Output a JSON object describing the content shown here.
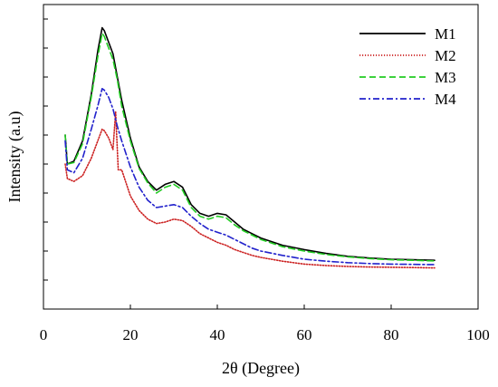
{
  "chart_data": {
    "type": "line",
    "title": "",
    "xlabel": "2θ (Degree)",
    "ylabel": "Intensity (a.u)",
    "xlim": [
      0,
      100
    ],
    "ylim": [
      0,
      10.5
    ],
    "x_ticks": [
      0,
      20,
      40,
      60,
      80,
      100
    ],
    "y_ticks_labeled": false,
    "legend_position": "top-right",
    "series": [
      {
        "name": "M1",
        "color": "#000000",
        "dash": "solid",
        "x": [
          5,
          5.5,
          7,
          9,
          11,
          12.5,
          13.5,
          14,
          15,
          16,
          17,
          18,
          20,
          22,
          24,
          26,
          28,
          30,
          32,
          34,
          36,
          38,
          40,
          42,
          44,
          46,
          48,
          50,
          55,
          60,
          65,
          70,
          75,
          80,
          85,
          90
        ],
        "y": [
          6.0,
          5.0,
          5.1,
          5.8,
          7.4,
          8.9,
          9.7,
          9.6,
          9.2,
          8.8,
          8.0,
          7.2,
          5.9,
          4.9,
          4.4,
          4.1,
          4.3,
          4.4,
          4.2,
          3.6,
          3.3,
          3.2,
          3.3,
          3.25,
          3.0,
          2.75,
          2.6,
          2.45,
          2.2,
          2.05,
          1.92,
          1.82,
          1.76,
          1.72,
          1.7,
          1.68
        ]
      },
      {
        "name": "M2",
        "color": "#cc2222",
        "dash": "dotted",
        "x": [
          5,
          5.5,
          7,
          9,
          11,
          12.5,
          13.5,
          14,
          15,
          16,
          16.6,
          17.2,
          18,
          20,
          22,
          24,
          26,
          28,
          30,
          32,
          34,
          36,
          38,
          40,
          42,
          44,
          46,
          48,
          50,
          55,
          60,
          65,
          70,
          75,
          80,
          85,
          90
        ],
        "y": [
          5.0,
          4.5,
          4.4,
          4.6,
          5.2,
          5.8,
          6.2,
          6.15,
          5.9,
          5.5,
          6.8,
          4.8,
          4.8,
          3.9,
          3.4,
          3.1,
          2.95,
          3.0,
          3.1,
          3.05,
          2.85,
          2.6,
          2.45,
          2.3,
          2.2,
          2.05,
          1.95,
          1.85,
          1.78,
          1.65,
          1.55,
          1.5,
          1.47,
          1.45,
          1.44,
          1.43,
          1.42
        ]
      },
      {
        "name": "M3",
        "color": "#22cc22",
        "dash": "dashed",
        "x": [
          5,
          5.5,
          7,
          9,
          11,
          12.5,
          13.5,
          14,
          15,
          16,
          17,
          18,
          20,
          22,
          24,
          26,
          28,
          30,
          32,
          34,
          36,
          38,
          40,
          42,
          44,
          46,
          48,
          50,
          55,
          60,
          65,
          70,
          75,
          80,
          85,
          90
        ],
        "y": [
          6.0,
          5.0,
          5.05,
          5.7,
          7.3,
          8.7,
          9.5,
          9.4,
          9.0,
          8.6,
          7.9,
          7.0,
          5.8,
          4.85,
          4.35,
          4.0,
          4.2,
          4.3,
          4.1,
          3.5,
          3.2,
          3.1,
          3.2,
          3.15,
          2.9,
          2.7,
          2.55,
          2.4,
          2.15,
          2.0,
          1.88,
          1.8,
          1.74,
          1.7,
          1.68,
          1.66
        ]
      },
      {
        "name": "M4",
        "color": "#2222cc",
        "dash": "dashdot",
        "x": [
          5,
          5.5,
          7,
          9,
          11,
          12.5,
          13.5,
          14,
          15,
          16,
          17,
          18,
          20,
          22,
          24,
          26,
          28,
          30,
          32,
          34,
          36,
          38,
          40,
          42,
          44,
          46,
          48,
          50,
          55,
          60,
          65,
          70,
          75,
          80,
          85,
          90
        ],
        "y": [
          5.8,
          4.8,
          4.7,
          5.2,
          6.2,
          7.0,
          7.6,
          7.55,
          7.3,
          6.9,
          6.3,
          5.8,
          4.9,
          4.2,
          3.75,
          3.5,
          3.55,
          3.6,
          3.5,
          3.2,
          2.95,
          2.75,
          2.65,
          2.55,
          2.4,
          2.25,
          2.1,
          2.0,
          1.85,
          1.72,
          1.65,
          1.6,
          1.57,
          1.55,
          1.54,
          1.53
        ]
      }
    ]
  }
}
